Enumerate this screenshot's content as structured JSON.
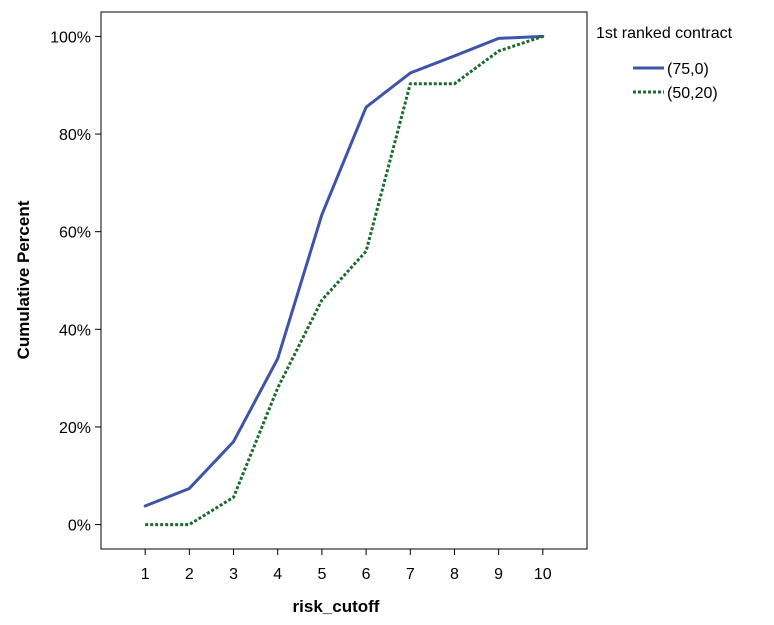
{
  "chart_data": {
    "type": "line",
    "title": "",
    "xlabel": "risk_cutoff",
    "ylabel": "Cumulative Percent",
    "x": [
      1,
      2,
      3,
      4,
      5,
      6,
      7,
      8,
      9,
      10
    ],
    "xticks": [
      "1",
      "2",
      "3",
      "4",
      "5",
      "6",
      "7",
      "8",
      "9",
      "10"
    ],
    "xlim": [
      0,
      11
    ],
    "ylim": [
      -5,
      105
    ],
    "yticks": [
      0,
      20,
      40,
      60,
      80,
      100
    ],
    "ytick_labels": [
      "0%",
      "20%",
      "40%",
      "60%",
      "80%",
      "100%"
    ],
    "grid": false,
    "legend": {
      "title": "1st ranked contract",
      "placement": "right"
    },
    "series": [
      {
        "name": "(75,0)",
        "color": "#3f54a8",
        "style": "solid",
        "values": [
          3.8,
          7.4,
          17,
          34,
          63.5,
          85.5,
          92.5,
          96,
          99.6,
          100
        ]
      },
      {
        "name": "(50,20)",
        "color": "#1a6b2d",
        "style": "dotted",
        "values": [
          0,
          0,
          5.6,
          28,
          46,
          56,
          90.3,
          90.3,
          97,
          100
        ]
      }
    ]
  }
}
